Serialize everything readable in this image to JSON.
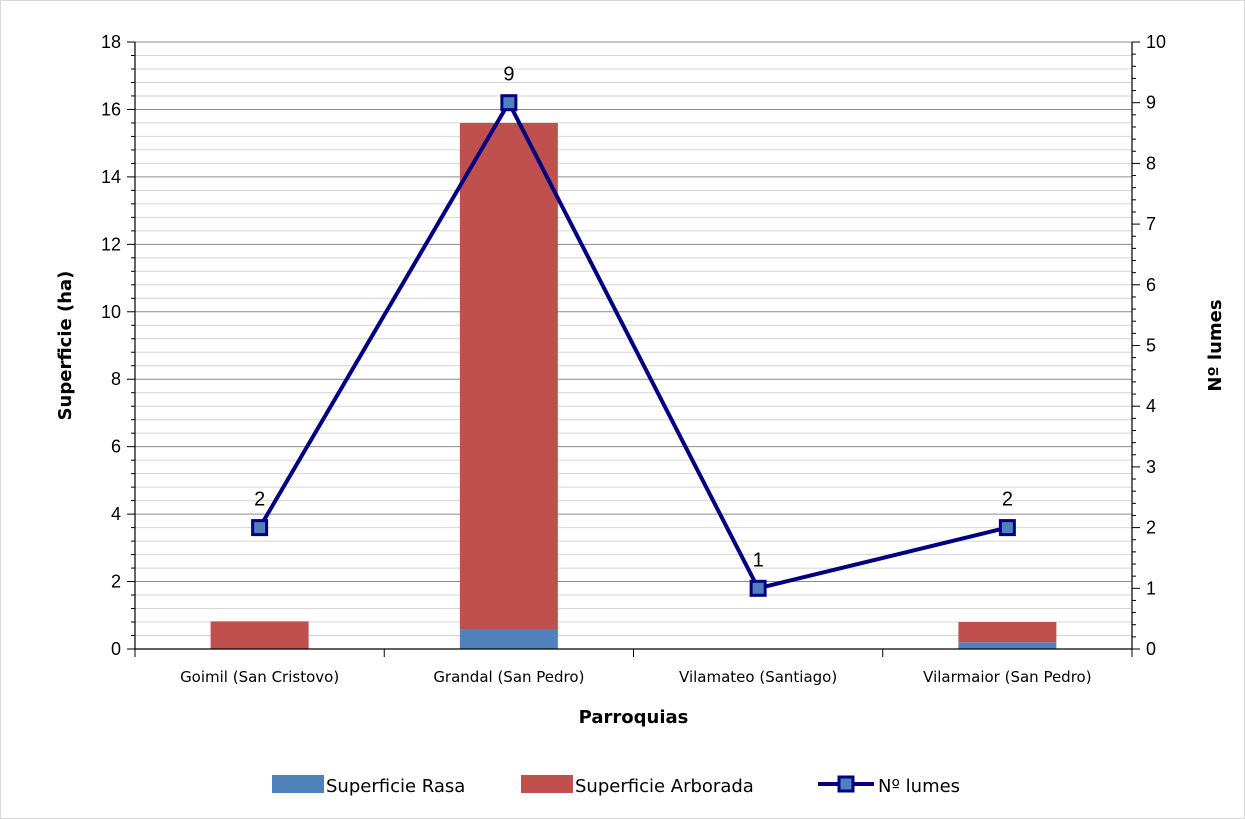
{
  "chart_data": {
    "type": "bar",
    "stacked": true,
    "title": "",
    "categories": [
      "Goimil (San Cristovo)",
      "Grandal (San Pedro)",
      "Vilamateo (Santiago)",
      "Vilarmaior (San Pedro)"
    ],
    "xlabel": "Parroquias",
    "ylabel": "Superficie (ha)",
    "y2label": "Nº lumes",
    "ylim": [
      0,
      18
    ],
    "y2lim": [
      0,
      10
    ],
    "yticks": [
      0,
      2,
      4,
      6,
      8,
      10,
      12,
      14,
      16,
      18
    ],
    "y2ticks": [
      0,
      1,
      2,
      3,
      4,
      5,
      6,
      7,
      8,
      9,
      10
    ],
    "grid": true,
    "legend_position": "bottom",
    "series": [
      {
        "name": "Superficie Rasa",
        "type": "bar",
        "axis": "left",
        "color": "#4f81bd",
        "values": [
          0,
          0.58,
          0,
          0.2
        ]
      },
      {
        "name": "Superficie Arborada",
        "type": "bar",
        "axis": "left",
        "color": "#c0504d",
        "values": [
          0.82,
          15.02,
          0,
          0.6
        ]
      },
      {
        "name": "Nº lumes",
        "type": "line",
        "axis": "right",
        "color": "#000080",
        "marker_fill": "#4f81bd",
        "values": [
          2,
          9,
          1,
          2
        ],
        "data_labels": [
          "2",
          "9",
          "1",
          "2"
        ]
      }
    ]
  }
}
